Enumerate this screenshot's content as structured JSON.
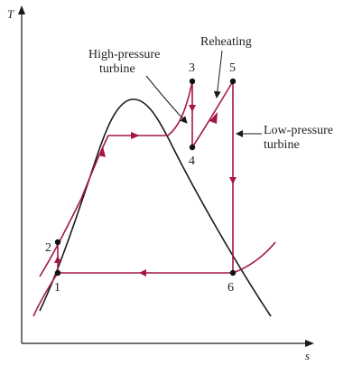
{
  "axes": {
    "y_label": "T",
    "x_label": "s"
  },
  "states": [
    "1",
    "2",
    "3",
    "4",
    "5",
    "6"
  ],
  "annotations": {
    "high_pressure_turbine": [
      "High-pressure",
      "turbine"
    ],
    "reheating": "Reheating",
    "low_pressure_turbine": [
      "Low-pressure",
      "turbine"
    ]
  },
  "colors": {
    "cycle": "#a3164a",
    "dome": "#1a1a1a",
    "axes": "#1a1a1a",
    "text": "#222222"
  }
}
